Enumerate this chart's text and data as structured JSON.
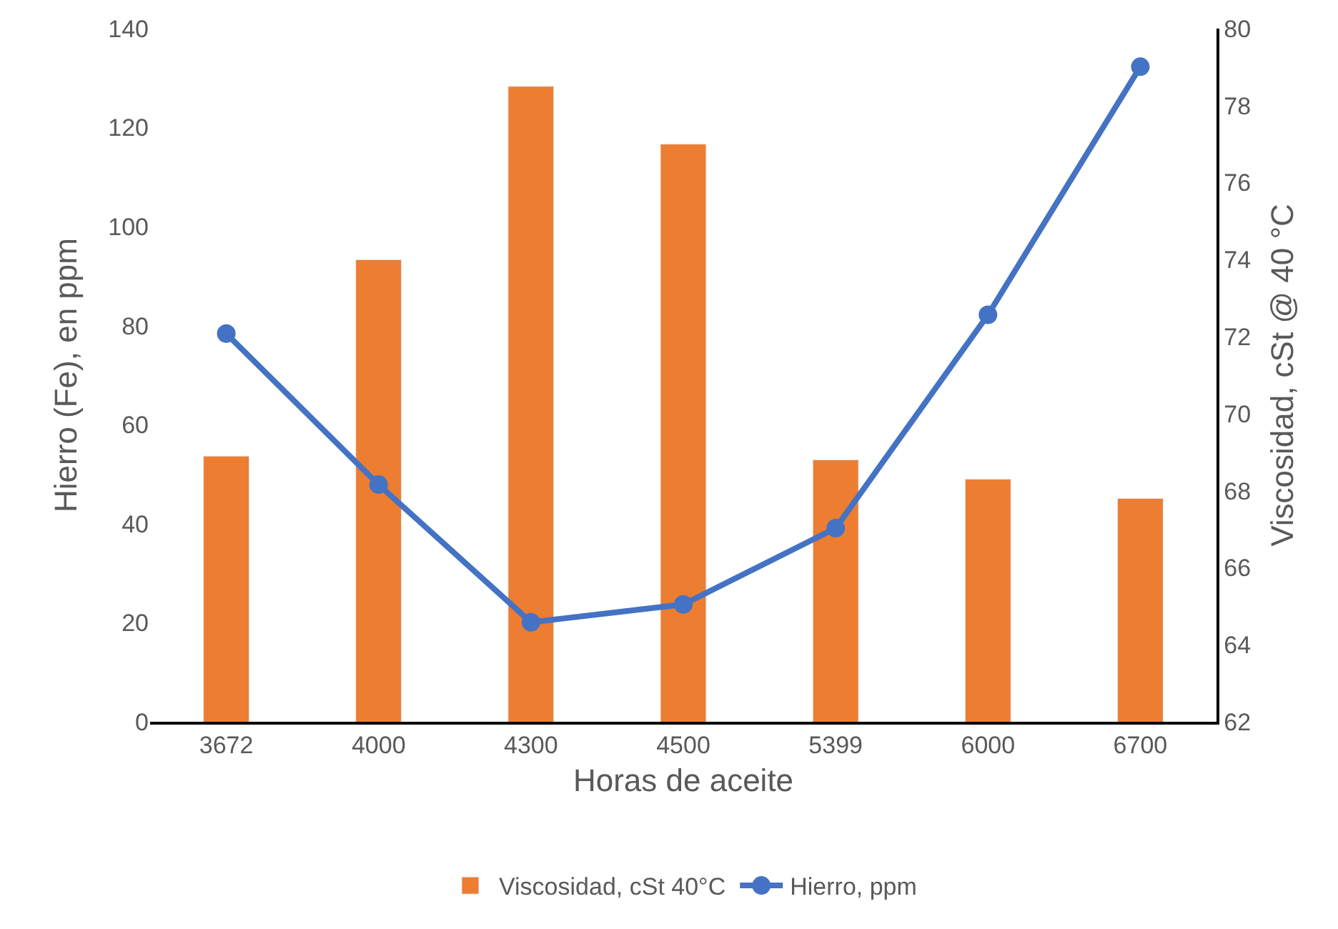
{
  "chart_data": {
    "type": "bar",
    "xlabel": "Horas de aceite",
    "ylabel": "Hierro (Fe), en ppm",
    "y2label": "Viscosidad, cSt @ 40 °C",
    "categories": [
      "3672",
      "4000",
      "4300",
      "4500",
      "5399",
      "6000",
      "6700"
    ],
    "series": [
      {
        "name": "Viscosidad, cSt 40°C",
        "axis": "y2",
        "color": "#ed7d31",
        "values": [
          68.9,
          74.0,
          78.5,
          77.0,
          68.8,
          68.3,
          67.8
        ]
      },
      {
        "name": "Hierro, ppm",
        "type": "line",
        "color": "#4472c4",
        "marker": "circle",
        "values": [
          78.4,
          47.9,
          20.1,
          23.7,
          39.1,
          82.2,
          132.3
        ]
      }
    ],
    "ylim": [
      0,
      140
    ],
    "yticks": [
      0,
      20,
      40,
      60,
      80,
      100,
      120,
      140
    ],
    "y2lim": [
      62,
      80
    ],
    "y2ticks": [
      62,
      64,
      66,
      68,
      70,
      72,
      74,
      76,
      78,
      80
    ],
    "grid": false,
    "legend": "bottom"
  }
}
